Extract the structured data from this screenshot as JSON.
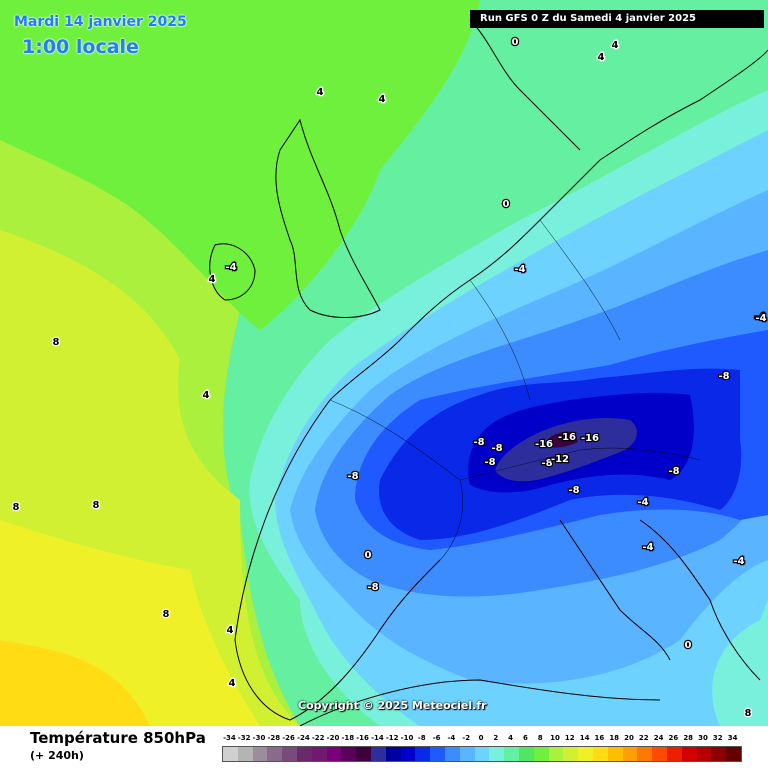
{
  "header": {
    "date": "Mardi 14 janvier 2025",
    "time": "1:00 locale",
    "run": "Run GFS 0 Z du Samedi 4 janvier 2025"
  },
  "copyright": "Copyright © 2025 Meteociel.fr",
  "footer": {
    "parameter": "Température 850hPa",
    "lead": "(+ 240h)"
  },
  "legend": {
    "labels": [
      "-34",
      "-32",
      "-30",
      "-28",
      "-26",
      "-24",
      "-22",
      "-20",
      "-18",
      "-16",
      "-14",
      "-12",
      "-10",
      "-8",
      "-6",
      "-4",
      "-2",
      "0",
      "2",
      "4",
      "6",
      "8",
      "10",
      "12",
      "14",
      "16",
      "18",
      "20",
      "22",
      "24",
      "26",
      "28",
      "30",
      "32",
      "34"
    ],
    "colors": [
      "#d0d0d0",
      "#b4b4b4",
      "#9c8c9c",
      "#8a6a8a",
      "#7a4a7a",
      "#6a2a6a",
      "#6e1a6e",
      "#7a007a",
      "#5a005a",
      "#3c003c",
      "#2d2d9c",
      "#0000a0",
      "#0000c8",
      "#0a28e8",
      "#1e5aff",
      "#3c8cff",
      "#5ab4ff",
      "#6ed2ff",
      "#78f0dc",
      "#64f0a0",
      "#50e664",
      "#6ef03c",
      "#aaf03c",
      "#d2f032",
      "#f0f028",
      "#ffdc14",
      "#ffbe00",
      "#ffa000",
      "#ff7800",
      "#ff4b00",
      "#f01e00",
      "#d20000",
      "#b40000",
      "#8c0000",
      "#640000"
    ]
  },
  "map_labels": [
    {
      "text": "4",
      "where": "north-sea"
    },
    {
      "text": "4",
      "where": "scotland"
    },
    {
      "text": "-4",
      "where": "ireland"
    },
    {
      "text": "4",
      "where": "ireland-west"
    },
    {
      "text": "8",
      "where": "atlantic-warm-pocket"
    },
    {
      "text": "4",
      "where": "bay-of-biscay"
    },
    {
      "text": "8",
      "where": "atlantic-southwest"
    },
    {
      "text": "8",
      "where": "atlantic-southwest-2"
    },
    {
      "text": "0",
      "where": "norway-coast"
    },
    {
      "text": "0",
      "where": "northern-germany"
    },
    {
      "text": "-4",
      "where": "poland"
    },
    {
      "text": "-8",
      "where": "alps-west"
    },
    {
      "text": "-8",
      "where": "alps-west-2"
    },
    {
      "text": "-8",
      "where": "alps-west-3"
    },
    {
      "text": "-16",
      "where": "alps-center"
    },
    {
      "text": "-16",
      "where": "alps-center-2"
    },
    {
      "text": "-16",
      "where": "alps-east"
    },
    {
      "text": "-8",
      "where": "alps-south"
    },
    {
      "text": "-12",
      "where": "alps-south-2"
    },
    {
      "text": "-8",
      "where": "france-southeast"
    },
    {
      "text": "-8",
      "where": "po-valley"
    },
    {
      "text": "-8",
      "where": "hungary"
    },
    {
      "text": "-8",
      "where": "balkans"
    },
    {
      "text": "-4",
      "where": "adriatic"
    },
    {
      "text": "-4",
      "where": "croatia"
    },
    {
      "text": "-4",
      "where": "east-edge"
    },
    {
      "text": "-4",
      "where": "greece-north"
    },
    {
      "text": "0",
      "where": "greece-south"
    },
    {
      "text": "0",
      "where": "balearics"
    },
    {
      "text": "-8",
      "where": "gulf-of-lion"
    },
    {
      "text": "8",
      "where": "morocco"
    },
    {
      "text": "4",
      "where": "algeria-west"
    },
    {
      "text": "8",
      "where": "aegean"
    },
    {
      "text": "4",
      "where": "libya"
    },
    {
      "text": "4",
      "where": "scandinavia"
    },
    {
      "text": "4",
      "where": "scandinavia-2"
    },
    {
      "text": "-4",
      "where": "east-poland"
    }
  ],
  "colors": {
    "title_blue": "#1f7dff",
    "banner_bg": "#000000"
  }
}
